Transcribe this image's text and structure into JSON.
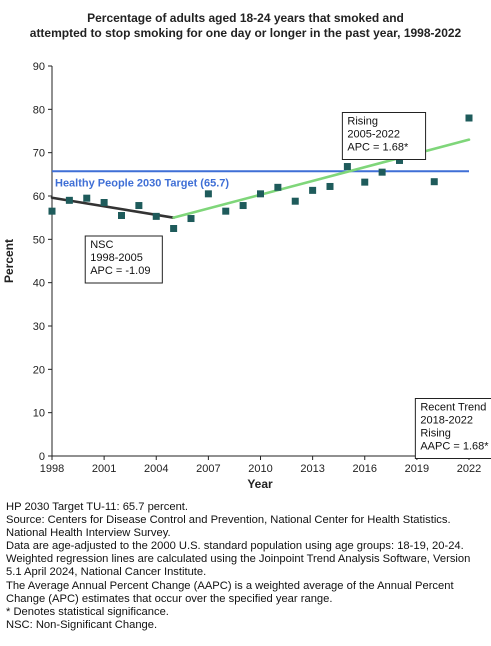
{
  "chart_data": {
    "type": "scatter",
    "title_lines": [
      "Percentage of adults aged 18-24 years that smoked and",
      "attempted to stop smoking for one day or longer in the past year, 1998-2022"
    ],
    "xlabel": "Year",
    "ylabel": "Percent",
    "xlim": [
      1998,
      2022
    ],
    "ylim": [
      0,
      90
    ],
    "x_ticks": [
      1998,
      2001,
      2004,
      2007,
      2010,
      2013,
      2016,
      2019,
      2022
    ],
    "y_ticks": [
      0,
      10,
      20,
      30,
      40,
      50,
      60,
      70,
      80,
      90
    ],
    "grid": false,
    "points": {
      "x": [
        1998,
        1999,
        2000,
        2001,
        2002,
        2003,
        2004,
        2005,
        2006,
        2007,
        2008,
        2009,
        2010,
        2011,
        2012,
        2013,
        2014,
        2015,
        2016,
        2017,
        2018,
        2020,
        2022
      ],
      "y": [
        56.5,
        59.0,
        59.5,
        58.5,
        55.5,
        57.8,
        55.3,
        52.5,
        54.8,
        60.5,
        56.5,
        57.8,
        60.5,
        62.0,
        58.8,
        61.3,
        62.2,
        66.8,
        63.2,
        65.5,
        68.2,
        63.3,
        78.0
      ],
      "color": "#1e5b5b"
    },
    "trend_segments": [
      {
        "x": [
          1998,
          2005
        ],
        "y": [
          59.6,
          55.0
        ],
        "color": "#333333"
      },
      {
        "x": [
          2005,
          2022
        ],
        "y": [
          55.0,
          73.0
        ],
        "color": "#7fd67a"
      }
    ],
    "target": {
      "value": 65.7,
      "label": "Healthy People 2030 Target (65.7)",
      "color": "#3f6fd6"
    },
    "annotations": [
      {
        "lines": [
          "NSC",
          "1998-2005",
          "APC = -1.09"
        ],
        "x": 2000.2,
        "y": 48.0
      },
      {
        "lines": [
          "Rising",
          "2005-2022",
          "APC =  1.68*"
        ],
        "x": 2015.0,
        "y": 76.5
      },
      {
        "lines": [
          "Recent Trend",
          "2018-2022",
          "Rising",
          "AAPC =  1.68*"
        ],
        "x": 2019.2,
        "y": 10.5
      }
    ]
  },
  "notes": [
    "HP 2030 Target TU-11: 65.7 percent.",
    "Source: Centers for Disease Control and Prevention, National Center for Health Statistics. National Health Interview Survey.",
    "Data are age-adjusted to the 2000 U.S. standard population using age groups: 18-19, 20-24.",
    "Weighted regression lines are calculated using the Joinpoint Trend Analysis Software, Version 5.1 April 2024, National Cancer Institute.",
    "The Average Annual Percent Change (AAPC) is a weighted average of the Annual Percent Change (APC) estimates that occur over the specified year range.",
    "* Denotes statistical significance.",
    "NSC: Non-Significant Change."
  ]
}
